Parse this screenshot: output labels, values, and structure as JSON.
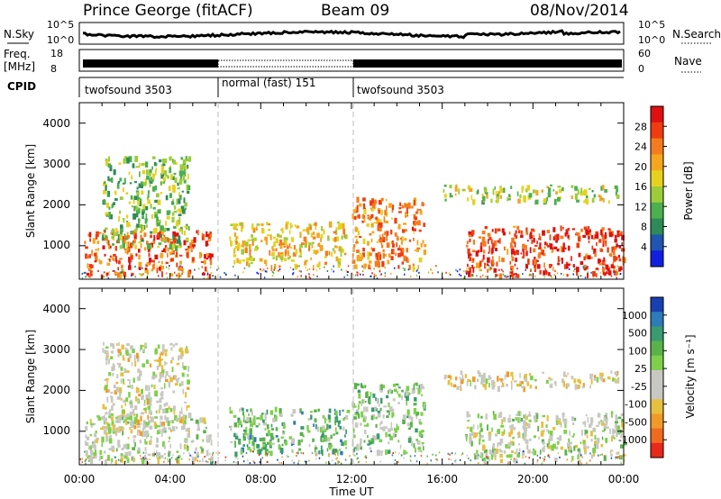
{
  "header": {
    "station": "Prince George (fitACF)",
    "beam": "Beam 09",
    "date": "08/Nov/2014"
  },
  "sky_panel": {
    "left_label": "N.Sky",
    "left_ticks": [
      "10^5",
      "10^0"
    ],
    "right_ticks": [
      "10^5",
      "10^0"
    ],
    "right_label": "N.Search"
  },
  "freq_panel": {
    "left_label_1": "Freq.",
    "left_label_2": "[MHz]",
    "left_ticks": [
      "18",
      "8"
    ],
    "right_ticks": [
      "60",
      "0"
    ],
    "right_label": "Nave"
  },
  "cpid_panel": {
    "label": "CPID",
    "segments": [
      {
        "name": "twofsound 3503",
        "start_h": 0,
        "end_h": 6
      },
      {
        "name": "normal (fast) 151",
        "start_h": 6,
        "end_h": 12
      },
      {
        "name": "twofsound 3503",
        "start_h": 12,
        "end_h": 24
      }
    ]
  },
  "power_panel": {
    "ylabel": "Slant Range [km]",
    "yticks": [
      "1000",
      "2000",
      "3000",
      "4000"
    ],
    "colorbar_label": "Power [dB]",
    "colorbar_ticks": [
      "28",
      "24",
      "20",
      "16",
      "12",
      "8",
      "4"
    ],
    "colorbar_colors": [
      "#e01010",
      "#f03c10",
      "#f57c1e",
      "#f5a51e",
      "#e6d21e",
      "#9ccc3a",
      "#4caf50",
      "#2e8b57",
      "#2055b0",
      "#1020e0"
    ]
  },
  "velocity_panel": {
    "ylabel": "Slant Range [km]",
    "yticks": [
      "1000",
      "2000",
      "3000",
      "4000"
    ],
    "colorbar_label": "Velocity [m s⁻¹]",
    "colorbar_ticks": [
      "1000",
      "500",
      "100",
      "25",
      "-25",
      "-100",
      "-500",
      "-1000"
    ],
    "colorbar_colors": [
      "#1a3fb0",
      "#2f7ab8",
      "#3a9a70",
      "#5ab24a",
      "#7ed04a",
      "#c8c8c2",
      "#c8c8c2",
      "#e6c040",
      "#f09a2a",
      "#f06a20",
      "#e82818"
    ]
  },
  "x_axis": {
    "ticks": [
      "00:00",
      "04:00",
      "08:00",
      "12:00",
      "16:00",
      "20:00",
      "00:00"
    ],
    "label": "Time UT"
  },
  "chart_data": {
    "type": "heatmap",
    "title": "Prince George (fitACF) Beam 09 08/Nov/2014",
    "x_range_hours": [
      0,
      24
    ],
    "y_range_km": [
      180,
      4500
    ],
    "xlabel": "Time UT",
    "ylabel": "Slant Range [km]",
    "panels": [
      {
        "name": "Power",
        "units": "dB",
        "scale": [
          0,
          30
        ],
        "regions": [
          {
            "t0": 0.2,
            "t1": 5.8,
            "r0": 300,
            "r1": 1400,
            "value": 24
          },
          {
            "t0": 1.0,
            "t1": 4.8,
            "r0": 1000,
            "r1": 3200,
            "value": 12
          },
          {
            "t0": 6.6,
            "t1": 11.8,
            "r0": 500,
            "r1": 1600,
            "value": 18
          },
          {
            "t0": 12.0,
            "t1": 15.2,
            "r0": 500,
            "r1": 2200,
            "value": 22
          },
          {
            "t0": 16.0,
            "t1": 23.8,
            "r0": 2100,
            "r1": 2500,
            "value": 14
          },
          {
            "t0": 17.0,
            "t1": 24.0,
            "r0": 300,
            "r1": 1500,
            "value": 26
          }
        ]
      },
      {
        "name": "Velocity",
        "units": "m s-1",
        "scale": [
          -1000,
          1000
        ],
        "regions": [
          {
            "t0": 0.2,
            "t1": 5.8,
            "r0": 300,
            "r1": 1400,
            "value": 0
          },
          {
            "t0": 1.0,
            "t1": 4.8,
            "r0": 1000,
            "r1": 3200,
            "value": -150
          },
          {
            "t0": 6.6,
            "t1": 11.8,
            "r0": 500,
            "r1": 1600,
            "value": 350
          },
          {
            "t0": 12.0,
            "t1": 15.2,
            "r0": 500,
            "r1": 2200,
            "value": 200
          },
          {
            "t0": 16.0,
            "t1": 23.8,
            "r0": 2100,
            "r1": 2500,
            "value": -200
          },
          {
            "t0": 17.0,
            "t1": 24.0,
            "r0": 300,
            "r1": 1500,
            "value": 0
          }
        ]
      }
    ]
  }
}
